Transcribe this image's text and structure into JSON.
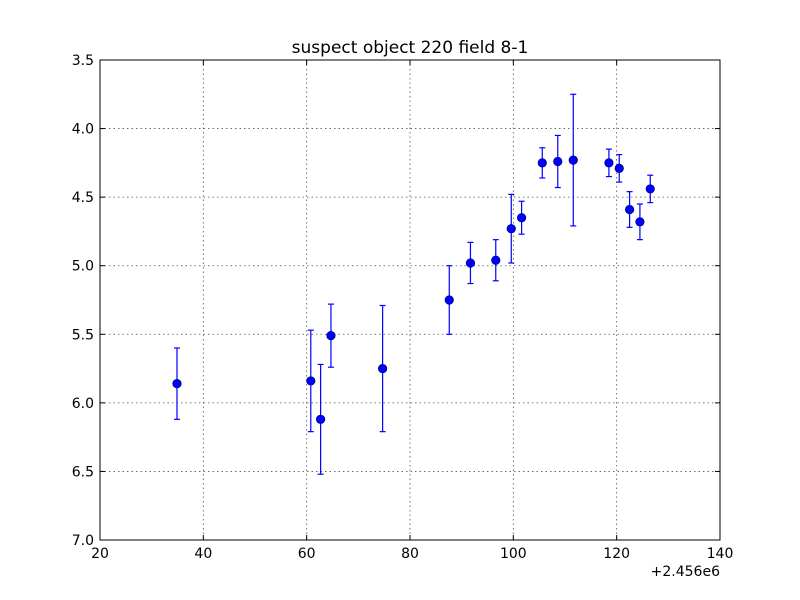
{
  "chart_data": {
    "type": "scatter",
    "title": "suspect object 220 field 8-1",
    "xlabel": "",
    "ylabel": "",
    "x_offset_label": "+2.456e6",
    "xlim": [
      20,
      140
    ],
    "ylim": [
      7.0,
      3.5
    ],
    "y_inverted": true,
    "grid": true,
    "x_ticks": [
      "20",
      "40",
      "60",
      "80",
      "100",
      "120",
      "140"
    ],
    "y_ticks": [
      "3.5",
      "4.0",
      "4.5",
      "5.0",
      "5.5",
      "6.0",
      "6.5",
      "7.0"
    ],
    "marker_color": "#0000ff",
    "points": [
      {
        "x": 34.9,
        "y": 5.86,
        "err": 0.26
      },
      {
        "x": 60.8,
        "y": 5.84,
        "err": 0.37
      },
      {
        "x": 62.7,
        "y": 6.12,
        "err": 0.4
      },
      {
        "x": 64.7,
        "y": 5.51,
        "err": 0.23
      },
      {
        "x": 74.7,
        "y": 5.75,
        "err": 0.46
      },
      {
        "x": 87.6,
        "y": 5.25,
        "err": 0.25
      },
      {
        "x": 91.7,
        "y": 4.98,
        "err": 0.15
      },
      {
        "x": 96.6,
        "y": 4.96,
        "err": 0.15
      },
      {
        "x": 99.6,
        "y": 4.73,
        "err": 0.25
      },
      {
        "x": 101.6,
        "y": 4.65,
        "err": 0.12
      },
      {
        "x": 105.6,
        "y": 4.25,
        "err": 0.11
      },
      {
        "x": 108.6,
        "y": 4.24,
        "err": 0.19
      },
      {
        "x": 111.6,
        "y": 4.23,
        "err": 0.48
      },
      {
        "x": 118.5,
        "y": 4.25,
        "err": 0.1
      },
      {
        "x": 120.5,
        "y": 4.29,
        "err": 0.1
      },
      {
        "x": 122.5,
        "y": 4.59,
        "err": 0.13
      },
      {
        "x": 124.5,
        "y": 4.68,
        "err": 0.13
      },
      {
        "x": 126.5,
        "y": 4.44,
        "err": 0.1
      }
    ]
  }
}
